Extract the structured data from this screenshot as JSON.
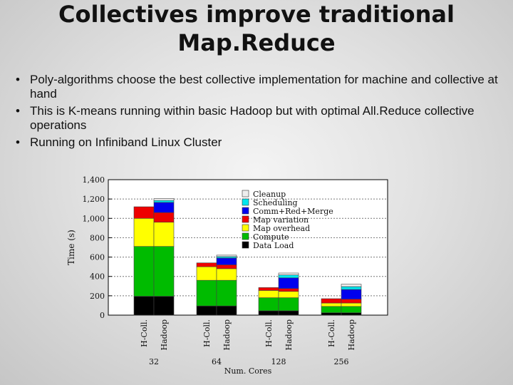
{
  "slide": {
    "title_line1": "Collectives improve traditional",
    "title_line2": "Map.Reduce",
    "bullets": [
      "Poly-algorithms choose the best collective implementation for machine and collective at hand",
      "This is K-means running within basic Hadoop but with optimal All.Reduce collective operations",
      "Running on Infiniband Linux Cluster"
    ]
  },
  "chart_data": {
    "type": "bar",
    "stacked": true,
    "ylabel": "Time (s)",
    "xlabel": "Num. Cores",
    "ylim": [
      0,
      1400
    ],
    "yticks": [
      0,
      200,
      400,
      600,
      800,
      1000,
      1200,
      1400
    ],
    "ytick_labels": [
      "0",
      "200",
      "400",
      "600",
      "800",
      "1,000",
      "1,200",
      "1,400"
    ],
    "grid": true,
    "legend_position": "top-right",
    "groups": [
      "32",
      "64",
      "128",
      "256"
    ],
    "bars": [
      "H-Coll.",
      "Hadoop"
    ],
    "series": [
      {
        "name": "Data Load",
        "color": "#000000",
        "values": [
          [
            195,
            195
          ],
          [
            95,
            95
          ],
          [
            45,
            45
          ],
          [
            25,
            25
          ]
        ]
      },
      {
        "name": "Compute",
        "color": "#00bb00",
        "values": [
          [
            515,
            515
          ],
          [
            265,
            265
          ],
          [
            135,
            135
          ],
          [
            65,
            65
          ]
        ]
      },
      {
        "name": "Map overhead",
        "color": "#ffff00",
        "values": [
          [
            290,
            250
          ],
          [
            140,
            120
          ],
          [
            75,
            65
          ],
          [
            35,
            35
          ]
        ]
      },
      {
        "name": "Map variation",
        "color": "#ee0000",
        "values": [
          [
            120,
            100
          ],
          [
            40,
            40
          ],
          [
            30,
            30
          ],
          [
            45,
            40
          ]
        ]
      },
      {
        "name": "Comm+Red+Merge",
        "color": "#0000ee",
        "values": [
          [
            0,
            105
          ],
          [
            0,
            70
          ],
          [
            0,
            110
          ],
          [
            0,
            100
          ]
        ]
      },
      {
        "name": "Scheduling",
        "color": "#00e5ee",
        "values": [
          [
            0,
            20
          ],
          [
            0,
            15
          ],
          [
            0,
            30
          ],
          [
            0,
            30
          ]
        ]
      },
      {
        "name": "Cleanup",
        "color": "#eeeeee",
        "values": [
          [
            0,
            20
          ],
          [
            0,
            15
          ],
          [
            0,
            20
          ],
          [
            0,
            25
          ]
        ]
      }
    ]
  }
}
